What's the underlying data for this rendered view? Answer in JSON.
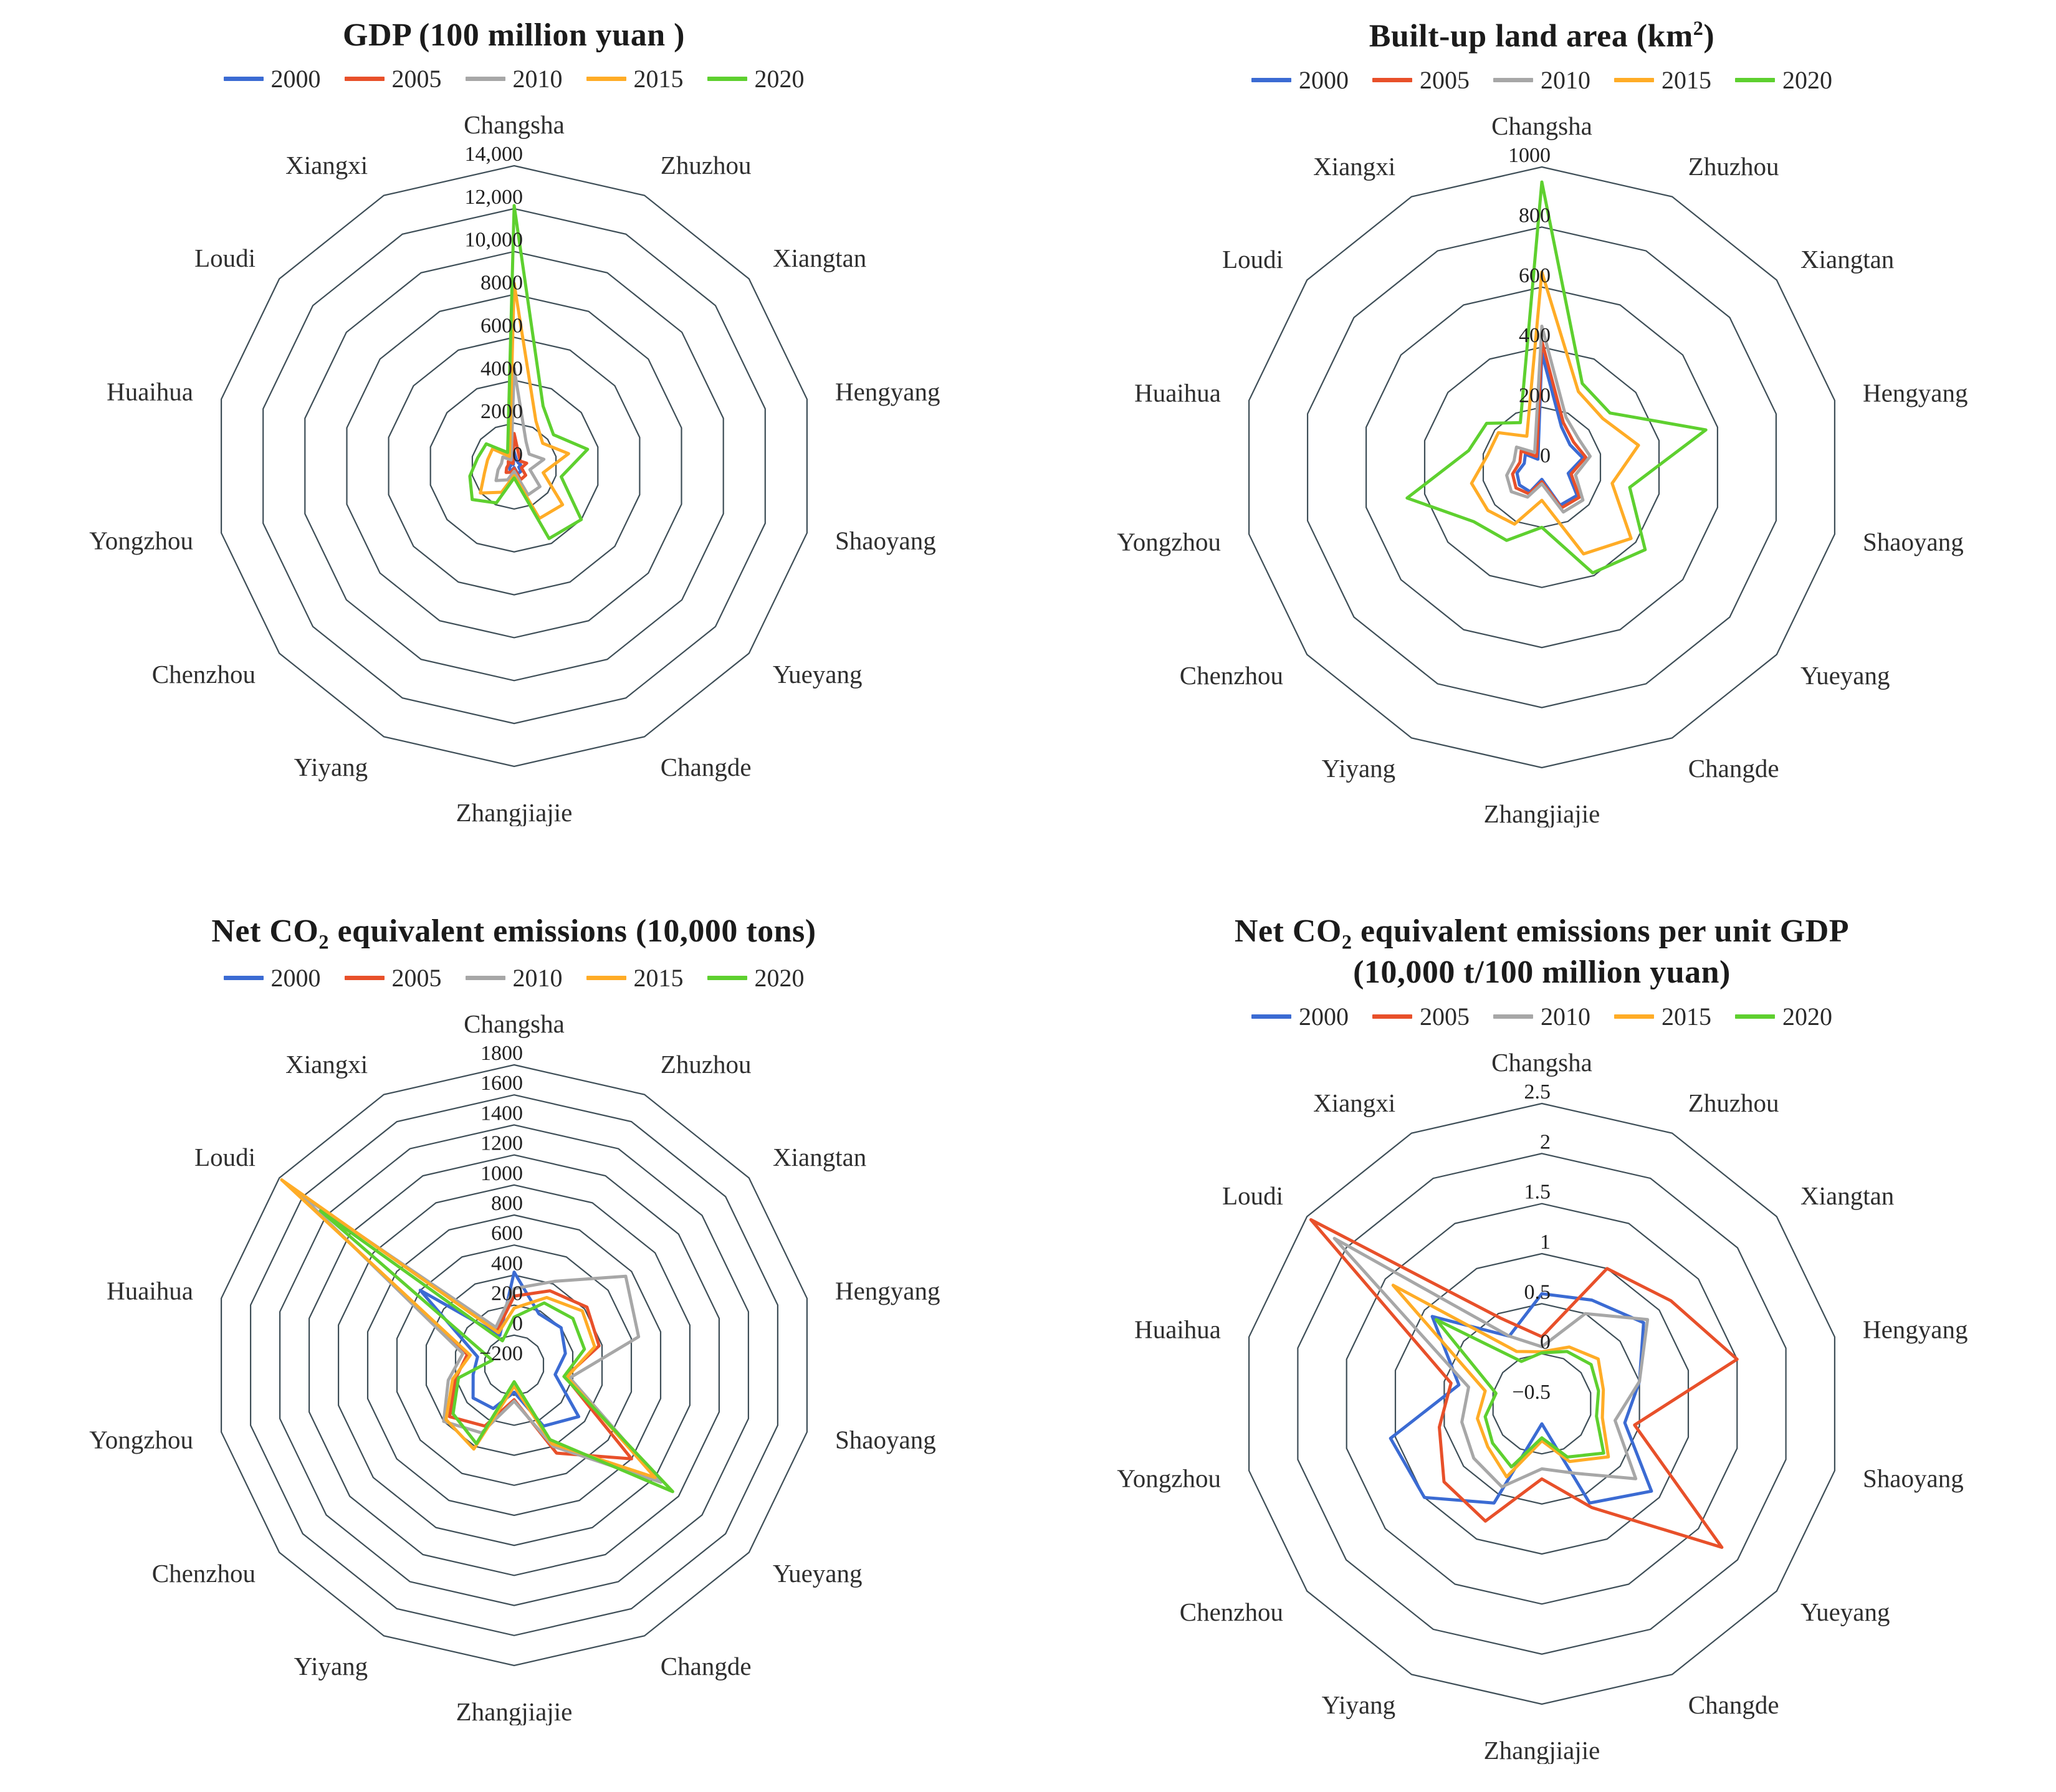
{
  "style": {
    "grid_color": "#3e4e57",
    "text_color": "#222222",
    "background": "#ffffff"
  },
  "legend": {
    "years": [
      "2000",
      "2005",
      "2010",
      "2015",
      "2020"
    ],
    "colors": {
      "2000": "#3B6BD3",
      "2005": "#E8502A",
      "2010": "#A7A7A7",
      "2015": "#FFAC26",
      "2020": "#5ED02F"
    }
  },
  "categories": [
    "Changsha",
    "Zhuzhou",
    "Xiangtan",
    "Hengyang",
    "Shaoyang",
    "Yueyang",
    "Changde",
    "Zhangjiajie",
    "Yiyang",
    "Chenzhou",
    "Yongzhou",
    "Huaihua",
    "Loudi",
    "Xiangxi"
  ],
  "chart_data": [
    {
      "id": "gdp",
      "type": "radar",
      "title_lines": [
        [
          {
            "t": "GDP (100 million yuan )"
          }
        ]
      ],
      "min": 0,
      "max": 14000,
      "step": 2000,
      "ticks": [
        "0",
        "2000",
        "4000",
        "6000",
        "8000",
        "10,000",
        "12,000",
        "14,000"
      ],
      "legend_position": "top",
      "grid": true,
      "series": [
        {
          "name": "2000",
          "values": [
            656,
            280,
            240,
            310,
            220,
            400,
            400,
            68,
            200,
            260,
            220,
            150,
            200,
            80
          ]
        },
        {
          "name": "2005",
          "values": [
            1520,
            525,
            367,
            600,
            350,
            686,
            700,
            110,
            320,
            480,
            360,
            280,
            350,
            130
          ]
        },
        {
          "name": "2010",
          "values": [
            4547,
            1275,
            894,
            1420,
            755,
            1539,
            1491,
            243,
            711,
            1081,
            770,
            603,
            675,
            320
          ]
        },
        {
          "name": "2015",
          "values": [
            8510,
            2335,
            1703,
            2602,
            1387,
            2886,
            2709,
            448,
            1354,
            2012,
            1418,
            1273,
            1290,
            500
          ]
        },
        {
          "name": "2020",
          "values": [
            12143,
            3106,
            2343,
            3509,
            2250,
            4001,
            3749,
            553,
            1905,
            2501,
            2119,
            1742,
            1663,
            702
          ]
        }
      ]
    },
    {
      "id": "builtup",
      "type": "radar",
      "title_lines": [
        [
          {
            "t": "Built-up land area (km"
          },
          {
            "t": "2",
            "sup": true
          },
          {
            "t": ")"
          }
        ]
      ],
      "min": 0,
      "max": 1000,
      "step": 200,
      "ticks": [
        "0",
        "200",
        "400",
        "600",
        "800",
        "1000"
      ],
      "legend_position": "top",
      "grid": true,
      "series": [
        {
          "name": "2000",
          "values": [
            380,
            150,
            120,
            140,
            90,
            150,
            140,
            40,
            90,
            95,
            85,
            60,
            70,
            30
          ]
        },
        {
          "name": "2005",
          "values": [
            420,
            165,
            135,
            150,
            100,
            160,
            150,
            48,
            98,
            110,
            100,
            75,
            88,
            40
          ]
        },
        {
          "name": "2010",
          "values": [
            470,
            185,
            155,
            165,
            115,
            175,
            165,
            55,
            110,
            130,
            120,
            95,
            108,
            55
          ]
        },
        {
          "name": "2015",
          "values": [
            650,
            280,
            260,
            330,
            240,
            380,
            320,
            110,
            210,
            230,
            240,
            185,
            185,
            115
          ]
        },
        {
          "name": "2020",
          "values": [
            950,
            310,
            290,
            560,
            300,
            440,
            390,
            200,
            270,
            290,
            460,
            250,
            235,
            165
          ]
        }
      ]
    },
    {
      "id": "netco2",
      "type": "radar",
      "title_lines": [
        [
          {
            "t": "Net CO"
          },
          {
            "t": "2",
            "sub": true
          },
          {
            "t": " equivalent emissions (10,000 tons)"
          }
        ]
      ],
      "min": -200,
      "max": 1800,
      "step": 200,
      "ticks": [
        "−200",
        "0",
        "200",
        "400",
        "600",
        "800",
        "1000",
        "1200",
        "1400",
        "1600",
        "1800"
      ],
      "legend_position": "top",
      "grid": true,
      "series": [
        {
          "name": "2000",
          "values": [
            420,
            180,
            200,
            150,
            80,
            350,
            250,
            -20,
            120,
            150,
            80,
            50,
            600,
            20
          ]
        },
        {
          "name": "2005",
          "values": [
            260,
            350,
            420,
            380,
            150,
            800,
            450,
            30,
            250,
            350,
            200,
            120,
            1700,
            60
          ]
        },
        {
          "name": "2010",
          "values": [
            310,
            420,
            750,
            650,
            180,
            1050,
            400,
            40,
            300,
            400,
            250,
            150,
            1620,
            80
          ]
        },
        {
          "name": "2015",
          "values": [
            180,
            300,
            380,
            350,
            160,
            1000,
            380,
            -60,
            420,
            380,
            220,
            100,
            1780,
            40
          ]
        },
        {
          "name": "2020",
          "values": [
            120,
            260,
            300,
            280,
            140,
            1150,
            350,
            -90,
            380,
            320,
            180,
            -50,
            1450,
            -20
          ]
        }
      ]
    },
    {
      "id": "perunit",
      "type": "radar",
      "title_lines": [
        [
          {
            "t": "Net CO"
          },
          {
            "t": "2",
            "sub": true
          },
          {
            "t": " equivalent emissions per unit GDP"
          }
        ],
        [
          {
            "t": "(10,000 t/100 million yuan)"
          }
        ]
      ],
      "min": -0.5,
      "max": 2.5,
      "step": 0.5,
      "ticks": [
        "−0.5",
        "0",
        "0.5",
        "1",
        "1.5",
        "2",
        "2.5"
      ],
      "legend_position": "top",
      "grid": true,
      "series": [
        {
          "name": "2000",
          "values": [
            0.6,
            0.65,
            0.8,
            0.5,
            0.35,
            0.9,
            0.6,
            -0.3,
            0.6,
            1.0,
            1.05,
            0.35,
            0.9,
            0.25
          ]
        },
        {
          "name": "2005",
          "values": [
            0.17,
            1.0,
            1.15,
            1.5,
            0.45,
            1.8,
            0.65,
            0.25,
            0.8,
            0.75,
            0.55,
            0.43,
            2.45,
            0.45
          ]
        },
        {
          "name": "2010",
          "values": [
            0.07,
            0.5,
            0.85,
            0.5,
            0.25,
            0.7,
            0.27,
            0.15,
            0.42,
            0.37,
            0.32,
            0.25,
            2.15,
            0.25
          ]
        },
        {
          "name": "2015",
          "values": [
            0.02,
            0.13,
            0.22,
            0.13,
            0.12,
            0.35,
            0.14,
            -0.13,
            0.31,
            0.19,
            0.16,
            0.08,
            1.4,
            0.08
          ]
        },
        {
          "name": "2020",
          "values": [
            0.01,
            0.08,
            0.13,
            0.08,
            0.06,
            0.29,
            0.09,
            -0.16,
            0.2,
            0.13,
            0.08,
            -0.03,
            0.85,
            -0.03
          ]
        }
      ]
    }
  ]
}
